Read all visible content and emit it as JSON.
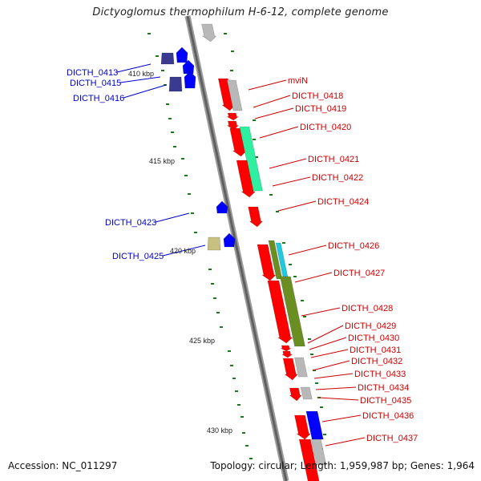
{
  "title": "Dictyoglomus thermophilum H-6-12, complete genome",
  "footer": {
    "accession": "Accession: NC_011297",
    "summary": "Topology: circular; Length: 1,959,987 bp; Genes: 1,964"
  },
  "colors": {
    "backbone": "#808080",
    "forward": "#ff0000",
    "gray": "#b8b8b8",
    "cds_function": "#2ef0a0",
    "olive": "#6b8e23",
    "cyan": "#20c8e0",
    "blue": "#0000ff",
    "navy": "#3a3a90",
    "khaki": "#c8c080",
    "tick": "#1a7a1a",
    "label_red": "#cc0000",
    "label_blue": "#0000cc"
  },
  "scale": {
    "labels": [
      "410 kbp",
      "415 kbp",
      "420 kbp",
      "425 kbp",
      "430 kbp"
    ]
  },
  "left_labels": [
    "DICTH_0413",
    "DICTH_0415",
    "DICTH_0416",
    "DICTH_0423",
    "DICTH_0425"
  ],
  "right_labels": [
    "mviN",
    "DICTH_0418",
    "DICTH_0419",
    "DICTH_0420",
    "DICTH_0421",
    "DICTH_0422",
    "DICTH_0424",
    "DICTH_0426",
    "DICTH_0427",
    "DICTH_0428",
    "DICTH_0429",
    "DICTH_0430",
    "DICTH_0431",
    "DICTH_0432",
    "DICTH_0433",
    "DICTH_0434",
    "DICTH_0435",
    "DICTH_0436",
    "DICTH_0437"
  ]
}
